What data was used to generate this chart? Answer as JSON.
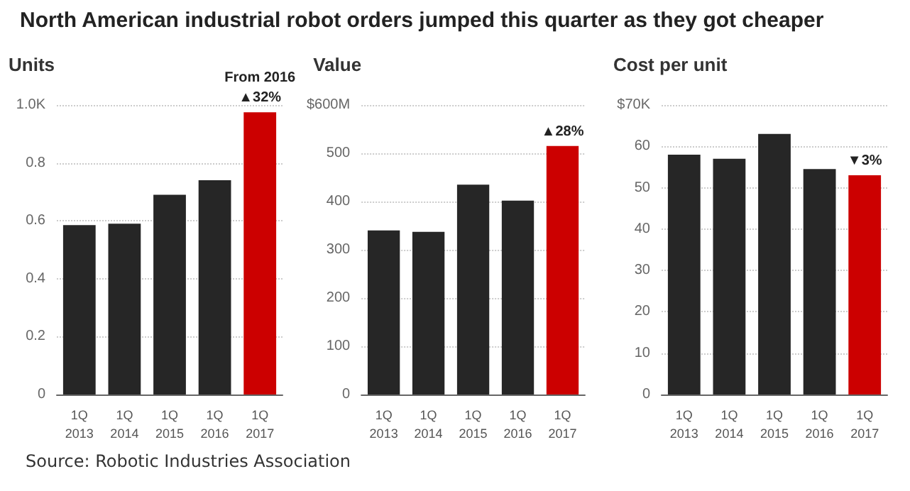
{
  "chart_data": [
    {
      "type": "bar",
      "title": "North American industrial robot orders jumped this quarter as they got cheaper",
      "ylabel": "Units",
      "categories": [
        "1Q 2013",
        "1Q 2014",
        "1Q 2015",
        "1Q 2016",
        "1Q 2017"
      ],
      "values": [
        0.585,
        0.59,
        0.69,
        0.74,
        0.975
      ],
      "colors": [
        "#262626",
        "#262626",
        "#262626",
        "#262626",
        "#cc0000"
      ],
      "ylim": [
        0,
        1
      ],
      "yticks": [
        0,
        0.2,
        0.4,
        0.6,
        0.8,
        {
          "value": 1,
          "label": "1.0K"
        }
      ],
      "grid": "y",
      "annotations": [
        {
          "text": "From 2016",
          "x": "1Q 2017",
          "y": 0.975
        },
        {
          "text": "▲32%",
          "x": "1Q 2017",
          "y": 0.975
        },
        "Source: Robotic Industries Association"
      ]
    },
    {
      "type": "bar",
      "ylabel": "Value",
      "categories": [
        "1Q 2013",
        "1Q 2014",
        "1Q 2015",
        "1Q 2016",
        "1Q 2017"
      ],
      "values": [
        340,
        337,
        435,
        402,
        515
      ],
      "colors": [
        "#262626",
        "#262626",
        "#262626",
        "#262626",
        "#cc0000"
      ],
      "ylim": [
        0,
        600
      ],
      "yticks": [
        0,
        100,
        200,
        300,
        400,
        500,
        {
          "value": 600,
          "label": "$600M"
        }
      ],
      "grid": "y",
      "annotations": [
        {
          "text": "▲28%",
          "x": "1Q 2017",
          "y": 515
        }
      ]
    },
    {
      "type": "bar",
      "ylabel": "Cost per unit",
      "categories": [
        "1Q 2013",
        "1Q 2014",
        "1Q 2015",
        "1Q 2016",
        "1Q 2017"
      ],
      "values": [
        58,
        57,
        63,
        54.5,
        53
      ],
      "colors": [
        "#262626",
        "#262626",
        "#262626",
        "#262626",
        "#cc0000"
      ],
      "ylim": [
        0,
        70
      ],
      "yticks": [
        0,
        10,
        20,
        30,
        40,
        50,
        60,
        {
          "value": 70,
          "label": "$70K"
        }
      ],
      "grid": "y",
      "annotations": [
        {
          "text": "▼3%",
          "x": "1Q 2017",
          "y": 53
        }
      ]
    }
  ]
}
